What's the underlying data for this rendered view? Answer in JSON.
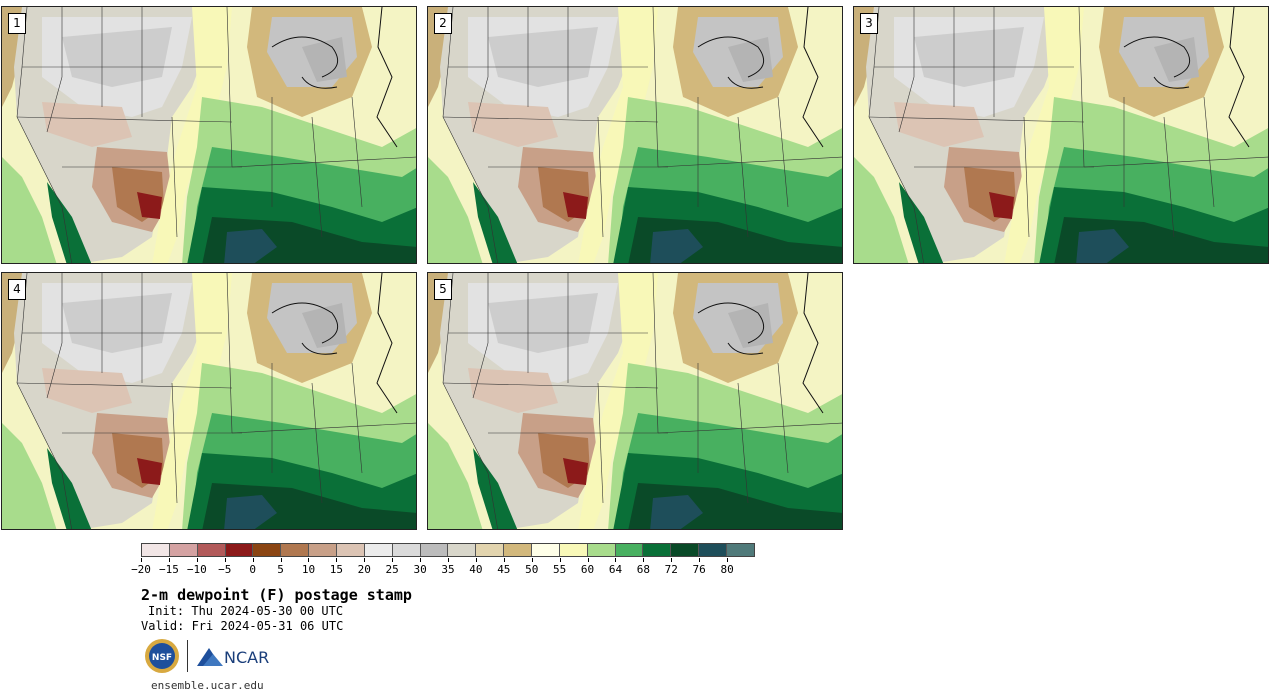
{
  "panels": [
    {
      "label": "1"
    },
    {
      "label": "2"
    },
    {
      "label": "3"
    },
    {
      "label": "4"
    },
    {
      "label": "5"
    }
  ],
  "colorbar": {
    "colors": [
      "#f2e6e6",
      "#d4a2a2",
      "#b25a5a",
      "#8c1a1a",
      "#8b4513",
      "#b07850",
      "#c8a088",
      "#dcc4b4",
      "#ececec",
      "#dadada",
      "#bcbcbc",
      "#d8d6ca",
      "#e2d4ae",
      "#d2b87c",
      "#ffffe8",
      "#f8f8b8",
      "#a8dc8c",
      "#48b060",
      "#0a7038",
      "#0a4a28",
      "#1e4e5a",
      "#507a7a"
    ],
    "tick_labels": [
      "−20",
      "−15",
      "−10",
      "−5",
      "0",
      "5",
      "10",
      "15",
      "20",
      "25",
      "30",
      "35",
      "40",
      "45",
      "50",
      "55",
      "60",
      "64",
      "68",
      "72",
      "76",
      "80"
    ]
  },
  "title": "2-m dewpoint (F) postage stamp",
  "init": "Init: Thu 2024-05-30 00 UTC",
  "valid": "Valid: Fri 2024-05-31 06 UTC",
  "logos": {
    "nsf": "NSF",
    "ncar": "NCAR"
  },
  "url": "ensemble.ucar.edu"
}
